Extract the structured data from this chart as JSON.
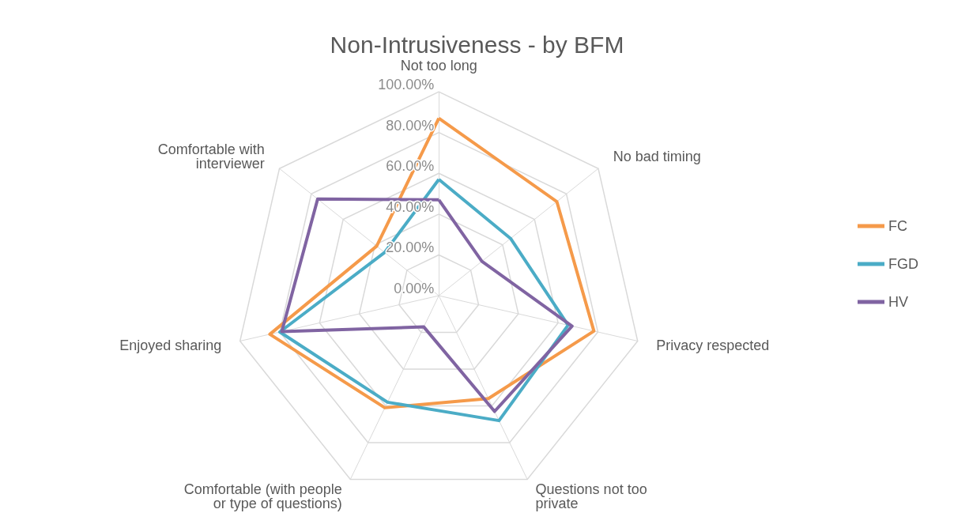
{
  "chart_data": {
    "type": "radar",
    "title": "Non-Intrusiveness - by BFM",
    "categories": [
      "Not too long",
      "No bad timing",
      "Privacy respected",
      "Questions not too private",
      "Comfortable (with people or type of questions)",
      "Enjoyed sharing",
      "Comfortable with interviewer"
    ],
    "series": [
      {
        "name": "FC",
        "color": "#f59a4a",
        "values": [
          87,
          74,
          78,
          56,
          61,
          85,
          39
        ]
      },
      {
        "name": "FGD",
        "color": "#4bacc6",
        "values": [
          57,
          45,
          65,
          68,
          58,
          80,
          34
        ]
      },
      {
        "name": "HV",
        "color": "#8064a2",
        "values": [
          47,
          27,
          67,
          63,
          17,
          79,
          76
        ]
      }
    ],
    "ylim": [
      0,
      100
    ],
    "yticks": [
      {
        "value": 0,
        "label": "0.00%"
      },
      {
        "value": 20,
        "label": "20.00%"
      },
      {
        "value": 40,
        "label": "40.00%"
      },
      {
        "value": 60,
        "label": "60.00%"
      },
      {
        "value": 80,
        "label": "80.00%"
      },
      {
        "value": 100,
        "label": "100.00%"
      }
    ],
    "grid": true,
    "legend": "right",
    "marker": "none"
  }
}
